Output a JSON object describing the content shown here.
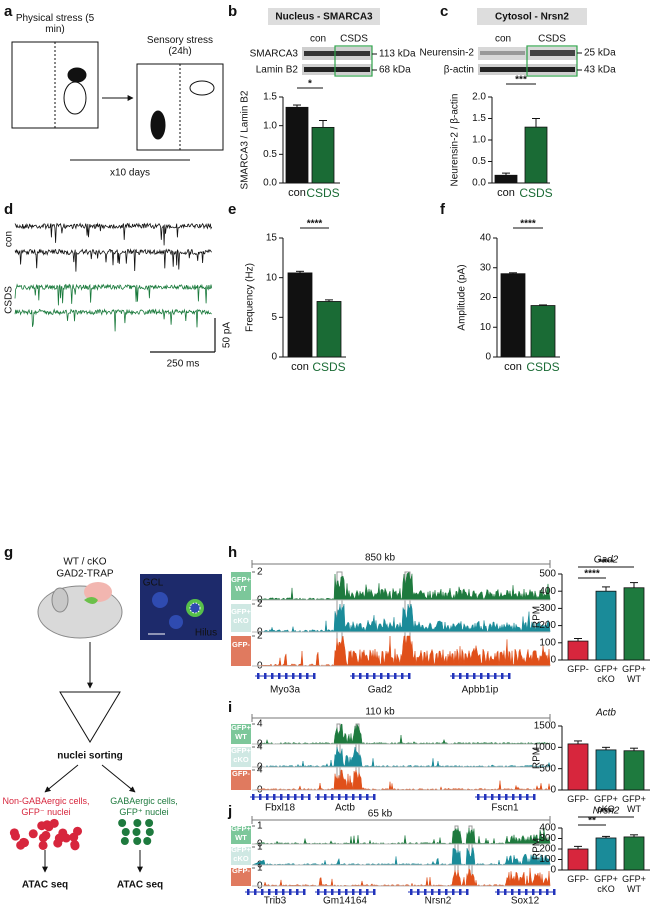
{
  "figure": {
    "panels": [
      "a",
      "b",
      "c",
      "d",
      "e",
      "f",
      "g",
      "h",
      "i",
      "j"
    ],
    "a": {
      "left": "Physical stress (5 min)",
      "right": "Sensory stress (24h)",
      "repeat": "x10 days"
    },
    "b_blot": {
      "title": "Nucleus - SMARCA3",
      "groups": [
        "con",
        "CSDS"
      ],
      "rows": [
        "SMARCA3",
        "Lamin B2"
      ],
      "sizes": [
        "113 kDa",
        "68 kDa"
      ]
    },
    "c_blot": {
      "title": "Cytosol - Nrsn2",
      "groups": [
        "con",
        "CSDS"
      ],
      "rows": [
        "Neurensin-2",
        "β-actin"
      ],
      "sizes": [
        "25 kDa",
        "43 kDa"
      ]
    },
    "d": {
      "groups": [
        "con",
        "CSDS"
      ],
      "scale_y": "50 pA",
      "scale_x": "250 ms"
    },
    "g": {
      "genotype": "WT / cKO",
      "line": "GAD2-TRAP",
      "inset_top": "GCL",
      "inset_bottom": "Hilus",
      "sorting": "nuclei sorting",
      "negative": "Non-GABAergic cells, GFP⁻ nuclei",
      "positive": "GABAergic cells, GFP⁺ nuclei",
      "assay": [
        "ATAC seq",
        "ATAC seq"
      ]
    },
    "tracks": [
      {
        "scale": "850 kb",
        "ylim": [
          0,
          2
        ],
        "labels": [
          "GFP+ WT",
          "GFP+ cKO",
          "GFP-"
        ],
        "genes": [
          "Myo3a",
          "Gad2",
          "Apbb1ip"
        ]
      },
      {
        "scale": "110 kb",
        "ylim": [
          0,
          4
        ],
        "labels": [
          "GFP+ WT",
          "GFP+ cKO",
          "GFP-"
        ],
        "genes": [
          "Fbxl18",
          "Actb",
          "Fscn1"
        ]
      },
      {
        "scale": "65 kb",
        "ylim": [
          0,
          1
        ],
        "labels": [
          "GFP+ WT",
          "GFP+ cKO",
          "GFP-"
        ],
        "genes": [
          "Trib3",
          "Gm14164",
          "Nrsn2",
          "Sox12"
        ]
      }
    ]
  },
  "chart_data": [
    {
      "type": "bar",
      "y_label": "SMARCA3 / Lamin B2",
      "categories": [
        "con",
        "CSDS"
      ],
      "values": [
        1.32,
        0.97
      ],
      "errors": [
        0.04,
        0.12
      ],
      "colors": [
        "#111111",
        "#1a6b35"
      ],
      "category_label_colors": [
        "#111111",
        "#1a6b35"
      ],
      "ylim": [
        0,
        1.5
      ],
      "yticks": [
        {
          "value": 0,
          "label": "0.0"
        },
        {
          "value": 0.5,
          "label": "0.5"
        },
        {
          "value": 1,
          "label": "1.0"
        },
        {
          "value": 1.5,
          "label": "1.5"
        }
      ],
      "comparisons": [
        {
          "from": "con",
          "to": "CSDS",
          "label": "*"
        }
      ]
    },
    {
      "type": "bar",
      "y_label": "Neurensin-2 / β-actin",
      "categories": [
        "con",
        "CSDS"
      ],
      "values": [
        0.18,
        1.3
      ],
      "errors": [
        0.05,
        0.2
      ],
      "colors": [
        "#111111",
        "#1a6b35"
      ],
      "category_label_colors": [
        "#111111",
        "#1a6b35"
      ],
      "ylim": [
        0,
        2
      ],
      "yticks": [
        {
          "value": 0,
          "label": "0.0"
        },
        {
          "value": 0.5,
          "label": "0.5"
        },
        {
          "value": 1,
          "label": "1.0"
        },
        {
          "value": 1.5,
          "label": "1.5"
        },
        {
          "value": 2,
          "label": "2.0"
        }
      ],
      "comparisons": [
        {
          "from": "con",
          "to": "CSDS",
          "label": "***"
        }
      ]
    },
    {
      "type": "bar",
      "y_label": "Frequency (Hz)",
      "categories": [
        "con",
        "CSDS"
      ],
      "values": [
        10.6,
        7.0
      ],
      "errors": [
        0.2,
        0.2
      ],
      "colors": [
        "#111111",
        "#1a6b35"
      ],
      "category_label_colors": [
        "#111111",
        "#1a6b35"
      ],
      "ylim": [
        0,
        15
      ],
      "yticks": [
        0,
        5,
        10,
        15
      ],
      "comparisons": [
        {
          "from": "con",
          "to": "CSDS",
          "label": "****"
        }
      ]
    },
    {
      "type": "bar",
      "y_label": "Amplitude (pA)",
      "categories": [
        "con",
        "CSDS"
      ],
      "values": [
        28,
        17.3
      ],
      "errors": [
        0.3,
        0.2
      ],
      "colors": [
        "#111111",
        "#1a6b35"
      ],
      "category_label_colors": [
        "#111111",
        "#1a6b35"
      ],
      "ylim": [
        0,
        40
      ],
      "yticks": [
        0,
        10,
        20,
        30,
        40
      ],
      "comparisons": [
        {
          "from": "con",
          "to": "CSDS",
          "label": "****"
        }
      ]
    },
    {
      "type": "bar",
      "title": "Gad2",
      "y_label": "RPM",
      "categories": [
        "GFP-",
        "GFP+ cKO",
        "GFP+ WT"
      ],
      "values": [
        110,
        400,
        420
      ],
      "errors": [
        15,
        25,
        30
      ],
      "colors": [
        "#d7263d",
        "#1a8b99",
        "#1e7a3e"
      ],
      "ylim": [
        0,
        500
      ],
      "yticks": [
        0,
        100,
        200,
        300,
        400,
        500
      ],
      "comparisons": [
        {
          "from": "GFP-",
          "to": "GFP+ cKO",
          "label": "****"
        },
        {
          "from": "GFP-",
          "to": "GFP+ WT",
          "label": "****"
        }
      ]
    },
    {
      "type": "bar",
      "title": "Actb",
      "y_label": "RPM",
      "categories": [
        "GFP-",
        "GFP+ cKO",
        "GFP+ WT"
      ],
      "values": [
        1080,
        940,
        920
      ],
      "errors": [
        70,
        60,
        60
      ],
      "colors": [
        "#d7263d",
        "#1a8b99",
        "#1e7a3e"
      ],
      "ylim": [
        0,
        1500
      ],
      "yticks": [
        0,
        500,
        1000,
        1500
      ],
      "comparisons": []
    },
    {
      "type": "bar",
      "title": "Nrsn2",
      "y_label": "RPM",
      "categories": [
        "GFP-",
        "GFP+ cKO",
        "GFP+ WT"
      ],
      "values": [
        200,
        305,
        315
      ],
      "errors": [
        25,
        15,
        20
      ],
      "colors": [
        "#d7263d",
        "#1a8b99",
        "#1e7a3e"
      ],
      "ylim": [
        0,
        400
      ],
      "yticks": [
        0,
        100,
        200,
        300,
        400
      ],
      "comparisons": [
        {
          "from": "GFP-",
          "to": "GFP+ cKO",
          "label": "**"
        },
        {
          "from": "GFP-",
          "to": "GFP+ WT",
          "label": "***"
        }
      ]
    }
  ]
}
